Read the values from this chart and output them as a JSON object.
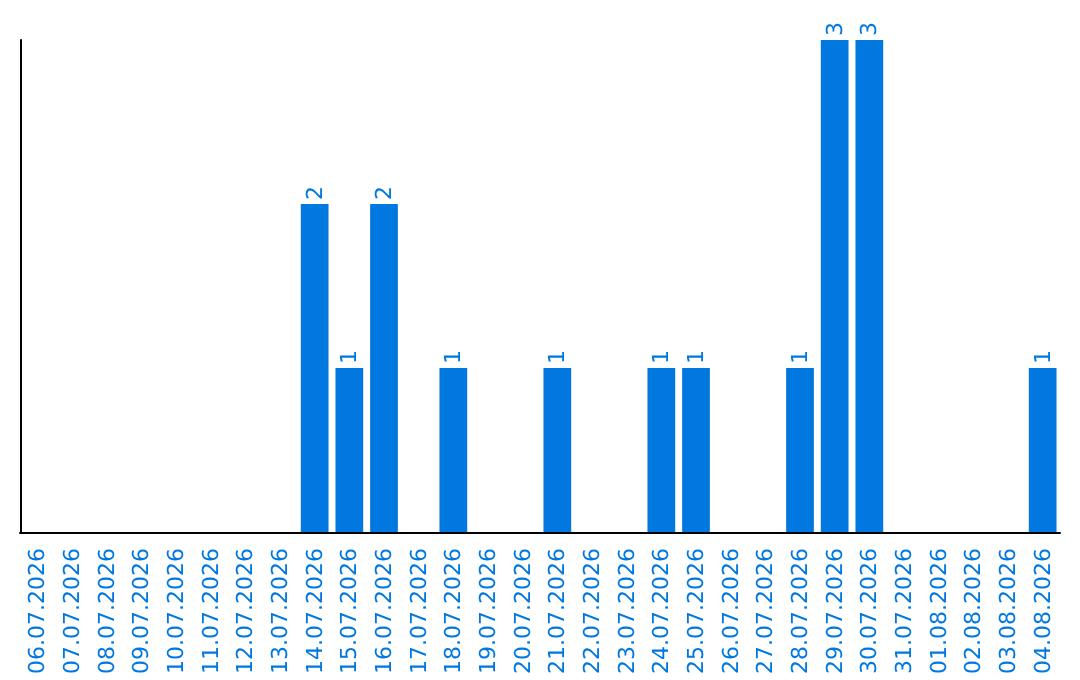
{
  "chart_data": {
    "type": "bar",
    "categories": [
      "06.07.2026",
      "07.07.2026",
      "08.07.2026",
      "09.07.2026",
      "10.07.2026",
      "11.07.2026",
      "12.07.2026",
      "13.07.2026",
      "14.07.2026",
      "15.07.2026",
      "16.07.2026",
      "17.07.2026",
      "18.07.2026",
      "19.07.2026",
      "20.07.2026",
      "21.07.2026",
      "22.07.2026",
      "23.07.2026",
      "24.07.2026",
      "25.07.2026",
      "26.07.2026",
      "27.07.2026",
      "28.07.2026",
      "29.07.2026",
      "30.07.2026",
      "31.07.2026",
      "01.08.2026",
      "02.08.2026",
      "03.08.2026",
      "04.08.2026"
    ],
    "values": [
      0,
      0,
      0,
      0,
      0,
      0,
      0,
      0,
      2,
      1,
      2,
      0,
      1,
      0,
      0,
      1,
      0,
      0,
      1,
      1,
      0,
      0,
      1,
      3,
      3,
      0,
      0,
      0,
      0,
      1
    ],
    "value_labels": [
      null,
      null,
      null,
      null,
      null,
      null,
      null,
      null,
      "2",
      "1",
      "2",
      null,
      "1",
      null,
      null,
      "1",
      null,
      null,
      "1",
      "1",
      null,
      null,
      "1",
      "3",
      "3",
      null,
      null,
      null,
      null,
      "1"
    ],
    "color": "#0078e0",
    "tick_labels": "x"
  }
}
